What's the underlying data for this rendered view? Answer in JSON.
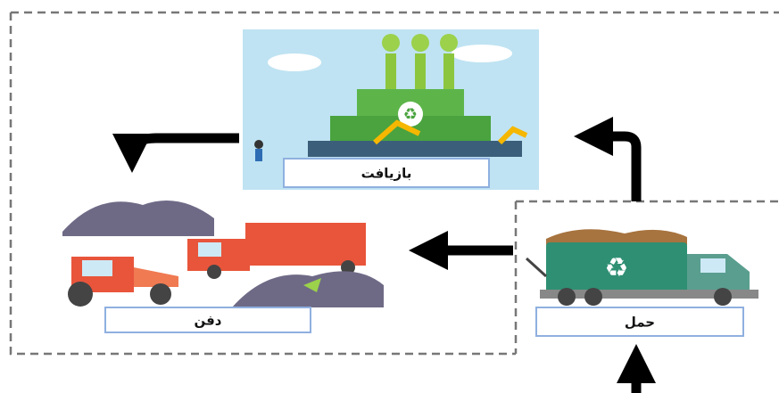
{
  "nodes": [
    {
      "label": "بازیافت"
    },
    {
      "label": "دفن"
    },
    {
      "label": "حمل"
    }
  ]
}
